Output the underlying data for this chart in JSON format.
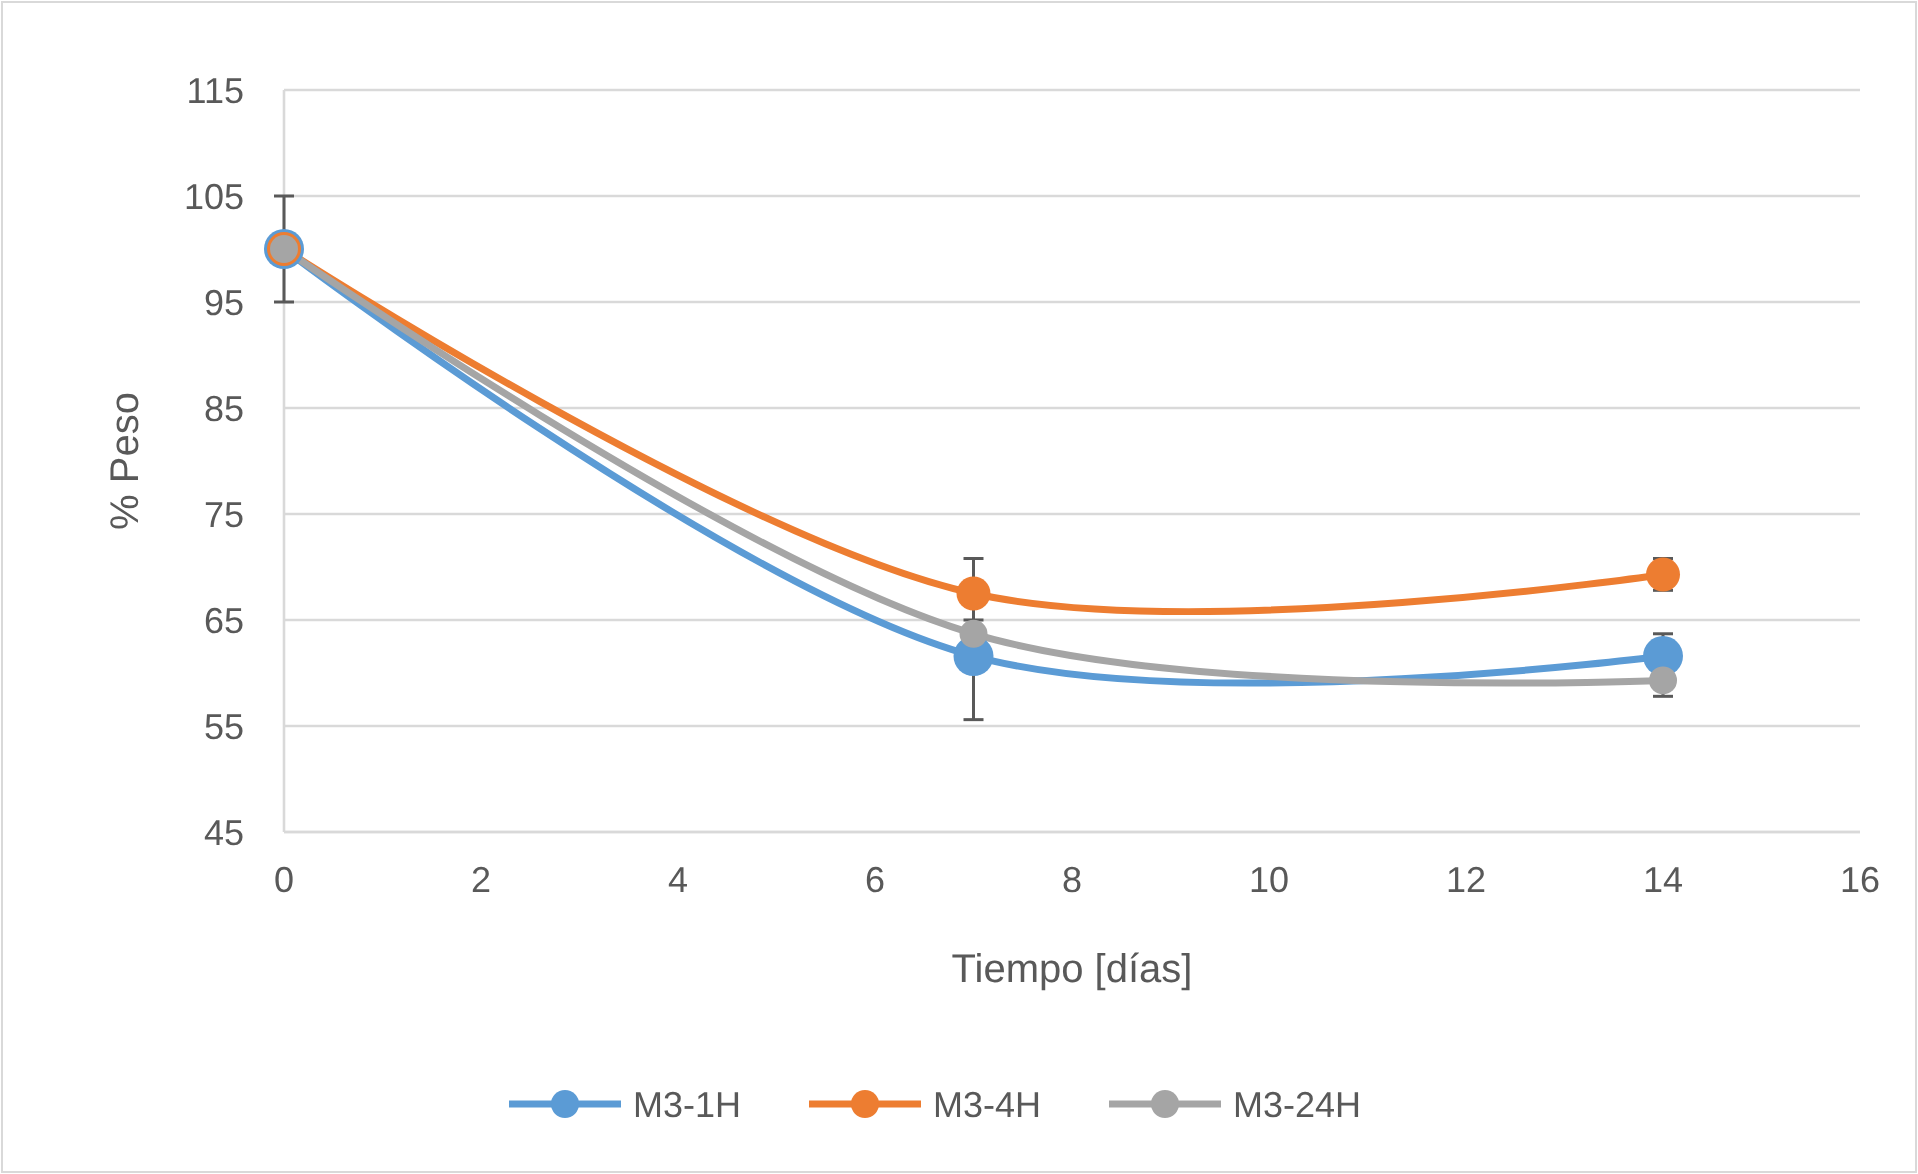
{
  "chart_data": {
    "type": "line",
    "xlabel": "Tiempo [días]",
    "ylabel": "% Peso",
    "x": [
      0,
      7,
      14
    ],
    "xlim": [
      0,
      16
    ],
    "xticks": [
      0,
      2,
      4,
      6,
      8,
      10,
      12,
      14,
      16
    ],
    "ylim": [
      45,
      115
    ],
    "yticks": [
      45,
      55,
      65,
      75,
      85,
      95,
      105,
      115
    ],
    "grid": "y",
    "legend": "bottom",
    "marker": "circle",
    "line_style": "solid",
    "series": [
      {
        "name": "M3-1H",
        "color": "#5b9bd5",
        "values": [
          100,
          61.6,
          61.6
        ],
        "errors": [
          null,
          6,
          2.1
        ]
      },
      {
        "name": "M3-4H",
        "color": "#ed7d31",
        "values": [
          100,
          67.5,
          69.3
        ],
        "errors": [
          null,
          3.3,
          1.5
        ]
      },
      {
        "name": "M3-24H",
        "color": "#a5a5a5",
        "values": [
          100,
          63.7,
          59.3
        ],
        "errors": [
          5,
          1.3,
          1.5
        ]
      }
    ]
  }
}
